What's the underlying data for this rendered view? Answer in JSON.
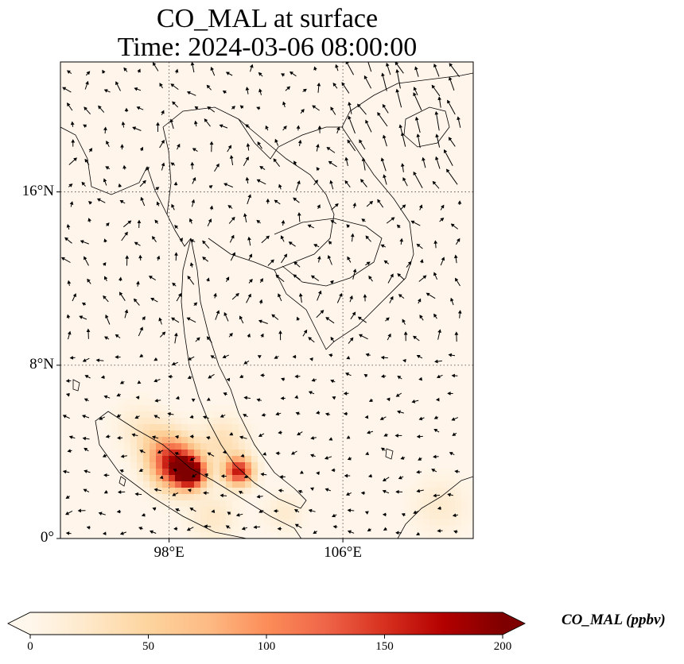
{
  "title": {
    "line1": "CO_MAL at surface",
    "line2": "Time: 2024-03-06 08:00:00"
  },
  "map": {
    "lon_range": [
      93,
      112
    ],
    "lat_range": [
      0,
      22
    ],
    "lat_ticks": [
      {
        "value": 16,
        "label": "16°N"
      },
      {
        "value": 8,
        "label": "8°N"
      },
      {
        "value": 0,
        "label": "0°"
      }
    ],
    "lon_ticks": [
      {
        "value": 98,
        "label": "98°E"
      },
      {
        "value": 106,
        "label": "106°E"
      }
    ],
    "gridlines": "dotted",
    "background_color": "#fff5eb",
    "coastline_color": "#000000",
    "concentration_hotspots": [
      {
        "lon": 98.3,
        "lat": 3.4,
        "value": 170,
        "extent": 2.5
      },
      {
        "lon": 99.0,
        "lat": 3.0,
        "value": 190,
        "extent": 1.5
      },
      {
        "lon": 101.2,
        "lat": 3.1,
        "value": 165,
        "extent": 1.5
      },
      {
        "lon": 97.5,
        "lat": 4.4,
        "value": 40,
        "extent": 2.5
      },
      {
        "lon": 100.5,
        "lat": 4.5,
        "value": 35,
        "extent": 2.5
      },
      {
        "lon": 96.5,
        "lat": 5.3,
        "value": 15,
        "extent": 2.5
      },
      {
        "lon": 103.3,
        "lat": 1.2,
        "value": 20,
        "extent": 2.0
      },
      {
        "lon": 110.5,
        "lat": 1.5,
        "value": 20,
        "extent": 3.0
      },
      {
        "lon": 100.0,
        "lat": 1.0,
        "value": 25,
        "extent": 2.5
      }
    ],
    "wind_vectors": "quiver field"
  },
  "colorbar": {
    "label": "CO_MAL (ppbv)",
    "min": 0,
    "max": 200,
    "extend": "both",
    "ticks": [
      "0",
      "50",
      "100",
      "150",
      "200"
    ],
    "tick_values": [
      0,
      50,
      100,
      150,
      200
    ],
    "colormap": "OrRd",
    "colors": [
      "#fff7ec",
      "#fee8c8",
      "#fdd49e",
      "#fdbb84",
      "#fc8d59",
      "#ef6548",
      "#d7301f",
      "#b30000",
      "#7f0000"
    ]
  }
}
